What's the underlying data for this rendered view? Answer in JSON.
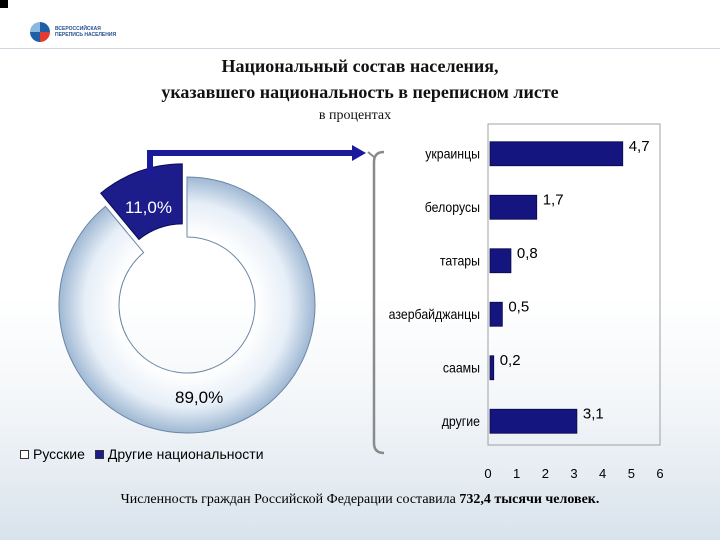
{
  "header": {
    "logo_line_1": "ВСЕРОССИЙСКАЯ",
    "logo_line_2": "ПЕРЕПИСЬ НАСЕЛЕНИЯ"
  },
  "title_line_1": "Национальный состав населения,",
  "title_line_2": "указавшего национальность в переписном листе",
  "subtitle": "в процентах",
  "colors": {
    "russians": "#dce8f5",
    "others": "#1c1c8a",
    "bar": "#15157f",
    "arrow": "#1a1a9a"
  },
  "chart_data": [
    {
      "type": "pie",
      "variant": "donut",
      "slices": [
        {
          "label": "Русские",
          "value": 89.0,
          "display": "89,0%"
        },
        {
          "label": "Другие национальности",
          "value": 11.0,
          "display": "11,0%"
        }
      ],
      "legend": [
        "Русские",
        "Другие национальности"
      ],
      "legend_position": "bottom"
    },
    {
      "type": "bar",
      "orientation": "horizontal",
      "categories": [
        "украинцы",
        "белорусы",
        "татары",
        "азербайджанцы",
        "саамы",
        "другие"
      ],
      "values": [
        4.7,
        1.7,
        0.8,
        0.5,
        0.2,
        3.1
      ],
      "value_labels": [
        "4,7",
        "1,7",
        "0,8",
        "0,5",
        "0,2",
        "3,1"
      ],
      "xlim": [
        0,
        6
      ],
      "xticks": [
        "0",
        "1",
        "2",
        "3",
        "4",
        "5",
        "6"
      ],
      "grid": false
    }
  ],
  "footer": {
    "text_plain": "Численность граждан Российской Федерации составила ",
    "text_bold": "732,4 тысячи человек."
  }
}
